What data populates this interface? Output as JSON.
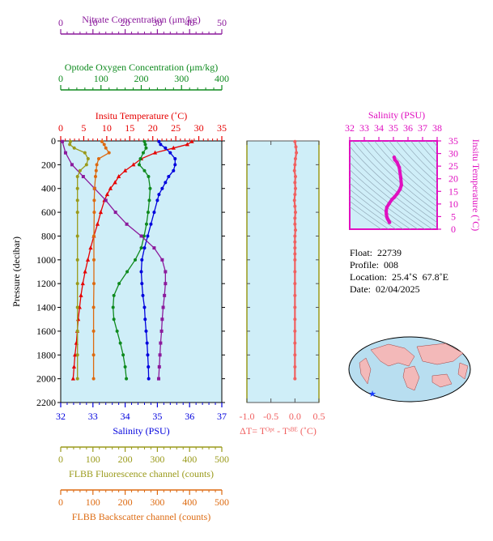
{
  "chart_data": [
    {
      "type": "line",
      "panel": "main profile",
      "ylabel": "Pressure (decibar)",
      "ylim": [
        2200,
        0
      ],
      "yticks": [
        0,
        200,
        400,
        600,
        800,
        1000,
        1200,
        1400,
        1600,
        1800,
        2000,
        2200
      ],
      "axes": [
        {
          "key": "nitrate",
          "title": "Nitrate Concentration (μm/kg)",
          "range": [
            0,
            50
          ],
          "ticks": [
            0,
            10,
            20,
            30,
            40,
            50
          ],
          "color": "#8b1a9c",
          "position": "top"
        },
        {
          "key": "oxygen",
          "title": "Optode Oxygen Concentration (μm/kg)",
          "range": [
            0,
            400
          ],
          "ticks": [
            0,
            100,
            200,
            300,
            400
          ],
          "color": "#0e8a1e",
          "position": "top"
        },
        {
          "key": "temperature",
          "title": "Insitu Temperature (˚C)",
          "range": [
            0,
            35
          ],
          "ticks": [
            0,
            5,
            10,
            15,
            20,
            25,
            30,
            35
          ],
          "color": "#e60000",
          "position": "top"
        },
        {
          "key": "salinity",
          "title": "Salinity (PSU)",
          "range": [
            32,
            37
          ],
          "ticks": [
            32,
            33,
            34,
            35,
            36,
            37
          ],
          "color": "#0000dd",
          "position": "bottom"
        },
        {
          "key": "fluorescence",
          "title": "FLBB Fluorescence channel (counts)",
          "range": [
            0,
            500
          ],
          "ticks": [
            0,
            100,
            200,
            300,
            400,
            500
          ],
          "color": "#9a9a1a",
          "position": "bottom"
        },
        {
          "key": "backscatter",
          "title": "FLBB Backscatter channel (counts)",
          "range": [
            0,
            500
          ],
          "ticks": [
            0,
            100,
            200,
            300,
            400,
            500
          ],
          "color": "#dd6a10",
          "position": "bottom"
        }
      ],
      "series": [
        {
          "name": "Insitu Temperature",
          "axis": "temperature",
          "color": "#e60000",
          "marker": "triangle",
          "pressure": [
            5,
            30,
            60,
            100,
            150,
            200,
            250,
            300,
            350,
            400,
            450,
            500,
            600,
            700,
            800,
            900,
            1000,
            1100,
            1200,
            1300,
            1400,
            1500,
            1600,
            1700,
            1800,
            1900,
            2000
          ],
          "values": [
            28.5,
            27.5,
            24.5,
            20.5,
            17.5,
            15.8,
            14.0,
            12.6,
            11.8,
            10.8,
            10.1,
            9.5,
            8.7,
            8.0,
            7.2,
            6.5,
            5.9,
            5.3,
            4.8,
            4.4,
            4.1,
            3.8,
            3.6,
            3.4,
            3.1,
            2.9,
            2.7
          ]
        },
        {
          "name": "Salinity",
          "axis": "salinity",
          "color": "#0000dd",
          "marker": "circle",
          "pressure": [
            5,
            30,
            60,
            100,
            150,
            200,
            250,
            300,
            350,
            400,
            450,
            500,
            600,
            700,
            800,
            900,
            1000,
            1100,
            1200,
            1300,
            1400,
            1500,
            1600,
            1700,
            1800,
            1900,
            2000
          ],
          "values": [
            35.05,
            35.1,
            35.25,
            35.4,
            35.55,
            35.55,
            35.5,
            35.35,
            35.25,
            35.15,
            35.05,
            35.0,
            34.9,
            34.8,
            34.7,
            34.6,
            34.52,
            34.5,
            34.52,
            34.55,
            34.6,
            34.62,
            34.65,
            34.68,
            34.7,
            34.72,
            34.73
          ]
        },
        {
          "name": "Optode Oxygen Concentration",
          "axis": "oxygen",
          "color": "#0e8a1e",
          "marker": "circle",
          "pressure": [
            5,
            30,
            60,
            100,
            150,
            200,
            250,
            300,
            400,
            500,
            600,
            700,
            800,
            900,
            1000,
            1100,
            1200,
            1300,
            1400,
            1500,
            1600,
            1700,
            1800,
            1900,
            2000
          ],
          "values": [
            208,
            210,
            212,
            205,
            198,
            195,
            208,
            218,
            222,
            220,
            217,
            213,
            207,
            200,
            185,
            165,
            145,
            132,
            130,
            132,
            140,
            148,
            155,
            160,
            163
          ]
        },
        {
          "name": "Nitrate Concentration",
          "axis": "nitrate",
          "color": "#8b1a9c",
          "marker": "square",
          "pressure": [
            5,
            100,
            200,
            300,
            400,
            500,
            600,
            700,
            800,
            900,
            1000,
            1100,
            1200,
            1300,
            1400,
            1500,
            1600,
            1700,
            1800,
            1900,
            2000
          ],
          "values": [
            0.5,
            1.5,
            3.5,
            7.0,
            10.5,
            14.0,
            17.0,
            20.5,
            25.0,
            29.0,
            31.5,
            32.5,
            32.5,
            32.2,
            31.8,
            31.5,
            31.3,
            31.0,
            30.8,
            30.6,
            30.4
          ]
        },
        {
          "name": "FLBB Fluorescence channel",
          "axis": "fluorescence",
          "color": "#9a9a1a",
          "marker": "circle",
          "pressure": [
            5,
            30,
            60,
            100,
            150,
            200,
            250,
            300,
            400,
            500,
            600,
            800,
            1000,
            1200,
            1400,
            1600,
            1800,
            2000
          ],
          "values": [
            30,
            28,
            42,
            75,
            85,
            80,
            60,
            52,
            52,
            52,
            52,
            52,
            52,
            52,
            52,
            52,
            52,
            52
          ]
        },
        {
          "name": "FLBB Backscatter channel",
          "axis": "backscatter",
          "color": "#dd6a10",
          "marker": "circle",
          "pressure": [
            5,
            30,
            60,
            100,
            150,
            200,
            250,
            300,
            400,
            500,
            600,
            800,
            1000,
            1200,
            1400,
            1600,
            1800,
            2000
          ],
          "values": [
            128,
            135,
            140,
            150,
            118,
            112,
            110,
            108,
            105,
            104,
            104,
            103,
            103,
            103,
            102,
            102,
            102,
            102
          ]
        }
      ]
    },
    {
      "type": "line",
      "panel": "temperature difference",
      "xlabel": "ΔT= Tᴼᵖᵗ - Tˢᴮᴱ (˚C)",
      "xlim": [
        -1.0,
        0.5
      ],
      "xticks": [
        "-1.0",
        "-0.5",
        "0.0",
        "0.5"
      ],
      "ylim": [
        2200,
        0
      ],
      "series": [
        {
          "name": "ΔT",
          "color": "#f06060",
          "marker": "circle",
          "pressure": [
            5,
            50,
            100,
            150,
            200,
            250,
            300,
            350,
            400,
            450,
            500,
            550,
            600,
            650,
            700,
            750,
            800,
            850,
            900,
            950,
            1000,
            1100,
            1200,
            1300,
            1400,
            1500,
            1600,
            1700,
            1800,
            1900,
            2000
          ],
          "values": [
            0.0,
            0.02,
            0.03,
            0.01,
            0.0,
            -0.01,
            0.01,
            0.0,
            0.01,
            0.0,
            -0.01,
            0.0,
            0.01,
            0.0,
            0.0,
            0.01,
            0.0,
            0.0,
            0.0,
            0.0,
            0.0,
            0.0,
            0.0,
            0.0,
            0.0,
            0.0,
            0.0,
            0.0,
            0.0,
            0.0,
            0.0
          ]
        }
      ]
    },
    {
      "type": "line",
      "panel": "T-S diagram",
      "title": "Salinity (PSU)",
      "xticks": [
        32,
        33,
        34,
        35,
        36,
        37,
        38
      ],
      "xlim": [
        32,
        38
      ],
      "ylabel": "Insitu Temperature (˚C)",
      "yticks": [
        0,
        5,
        10,
        15,
        20,
        25,
        30,
        35
      ],
      "ylim": [
        0,
        35
      ],
      "color": "#e010c0",
      "series": [
        {
          "name": "T-S",
          "salinity": [
            34.73,
            34.7,
            34.65,
            34.6,
            34.55,
            34.52,
            34.5,
            34.55,
            34.7,
            34.9,
            35.05,
            35.25,
            35.45,
            35.55,
            35.5,
            35.4,
            35.25,
            35.1,
            35.05
          ],
          "temperature": [
            2.7,
            3.1,
            3.6,
            4.1,
            4.8,
            5.9,
            7.2,
            8.7,
            10.1,
            11.8,
            12.6,
            14.0,
            15.8,
            17.5,
            20.5,
            24.5,
            26.5,
            27.5,
            28.5
          ]
        }
      ]
    }
  ],
  "info": {
    "float": "Float:  22739",
    "profile": "Profile:  008",
    "location": "Location:  25.4˚S  67.8˚E",
    "date": "Date:  02/04/2025"
  },
  "map": {
    "marker_color": "#1a3cff",
    "ocean_color": "#b8def0",
    "land_color": "#f3b9b9"
  }
}
